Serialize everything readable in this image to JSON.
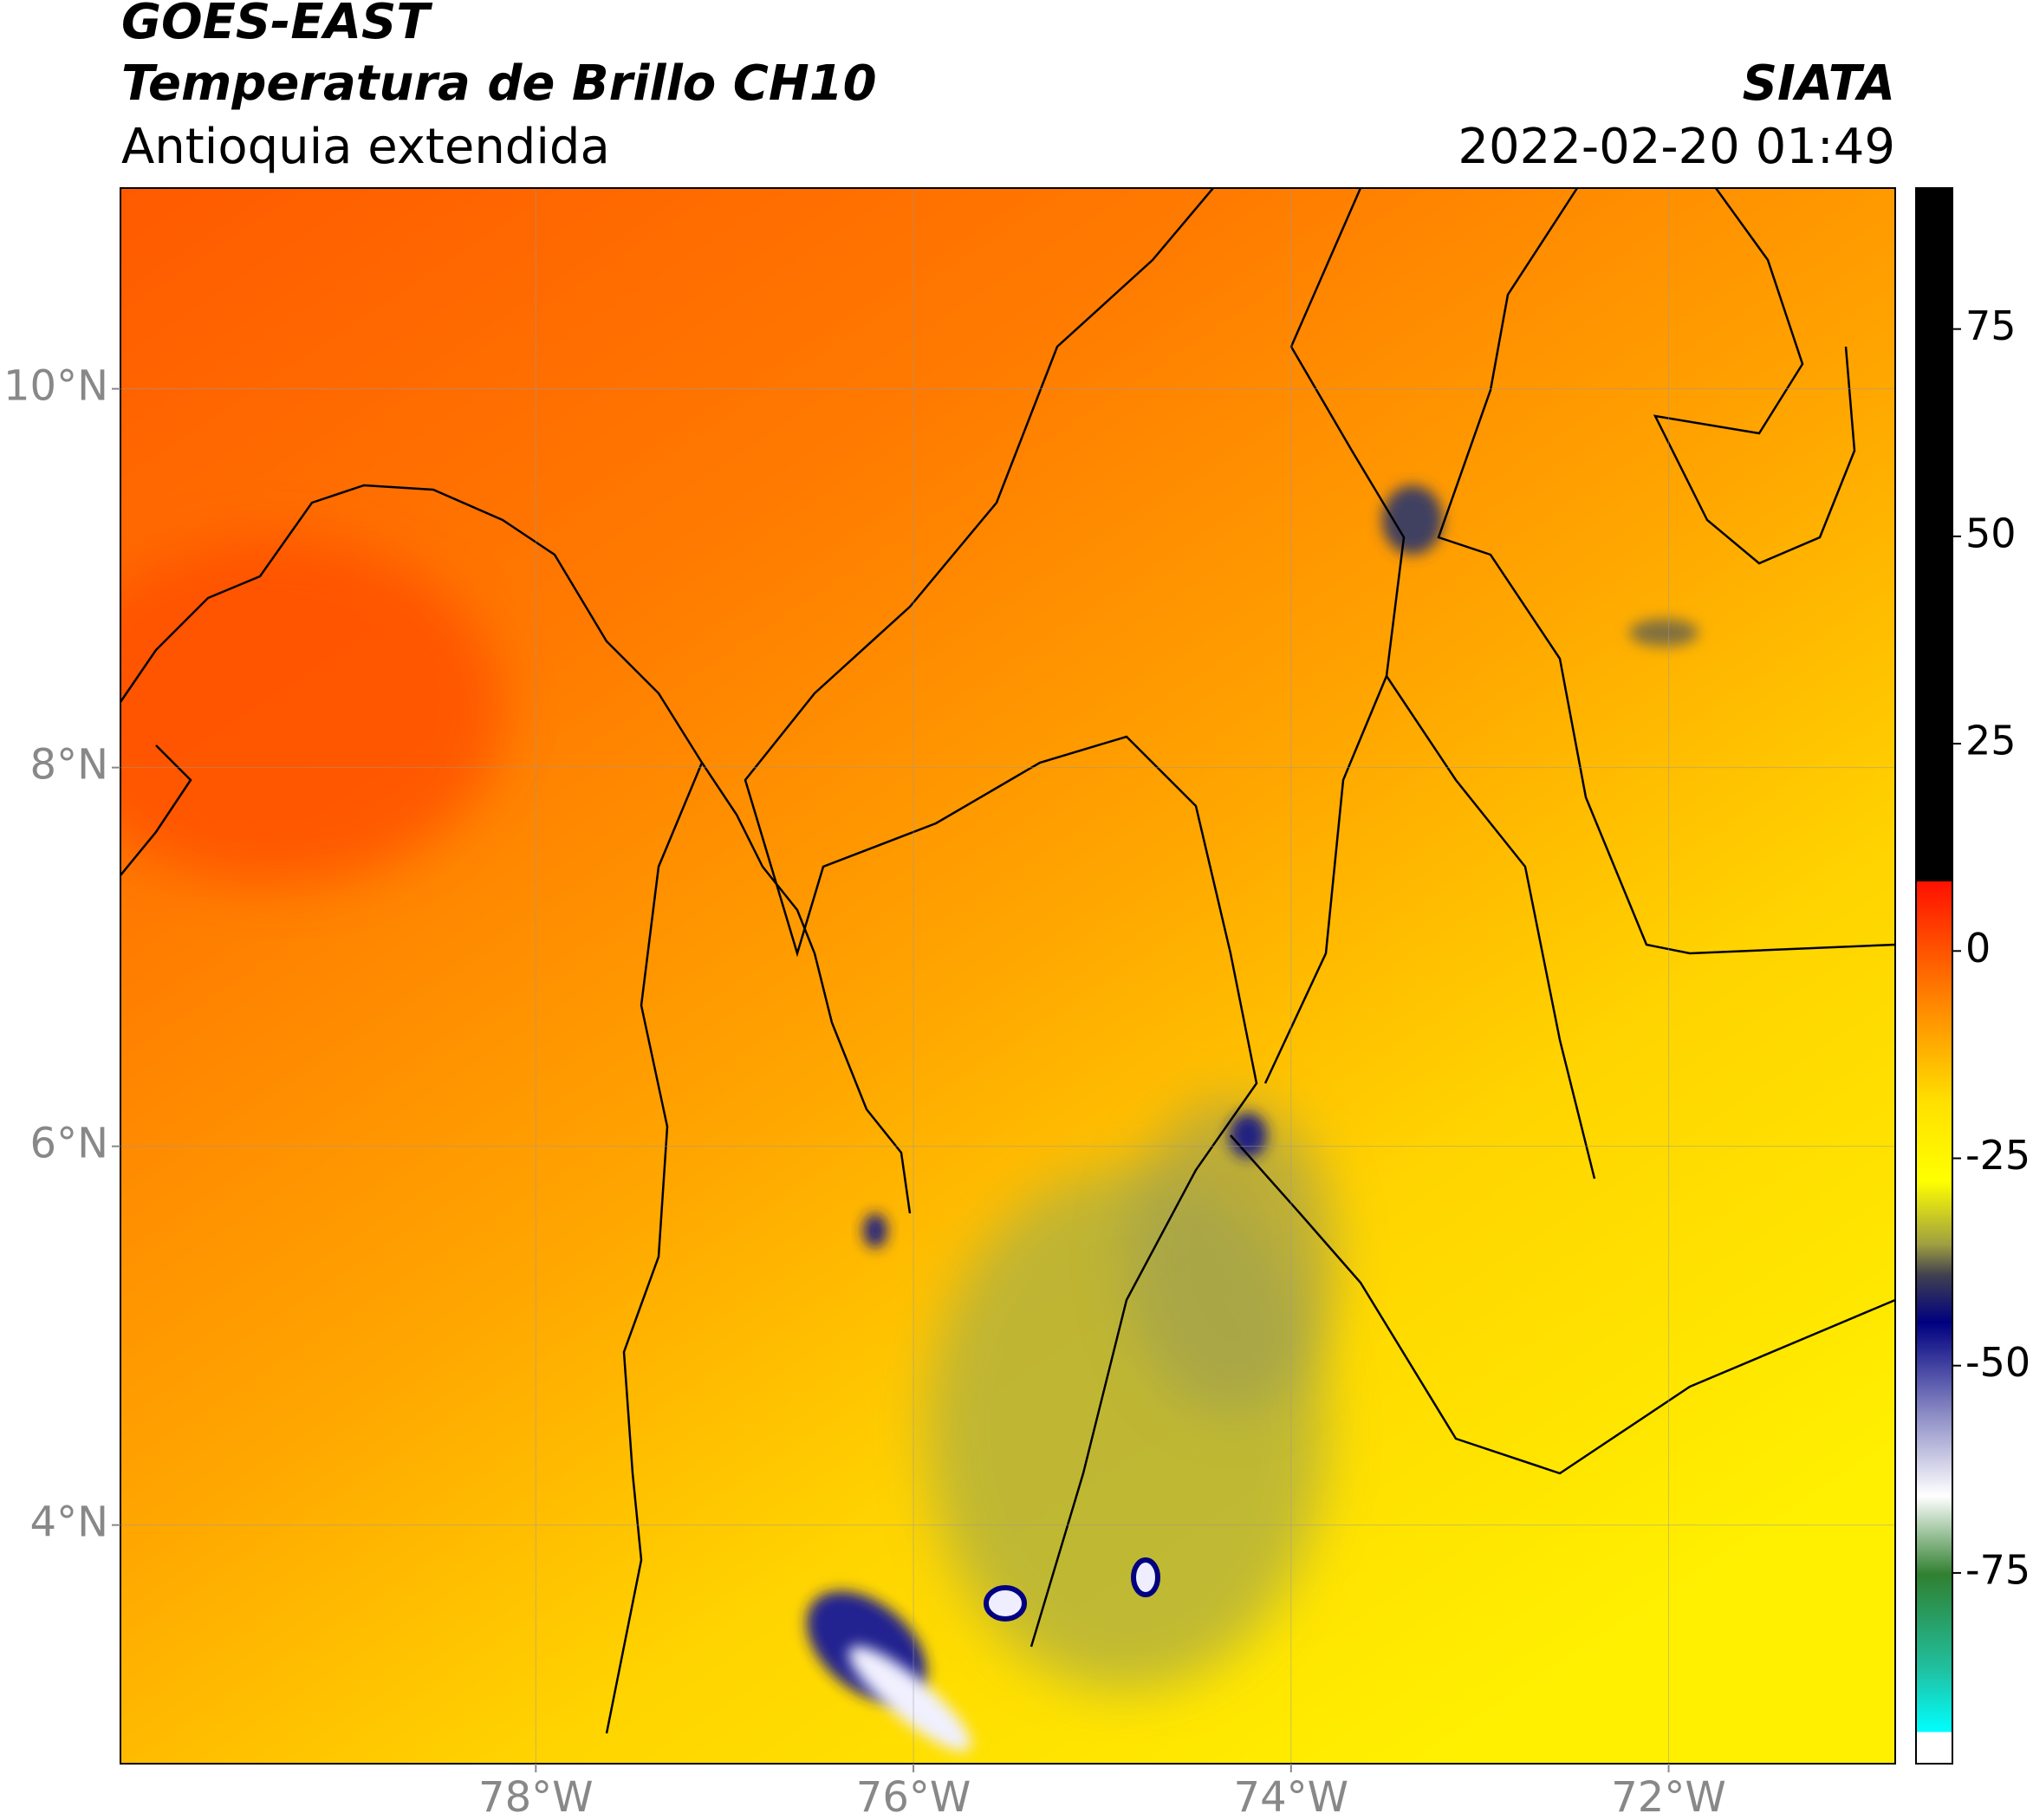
{
  "header": {
    "title": "GOES-EAST",
    "subtitle": "Temperatura de Brillo CH10",
    "region": "Antioquia extendida",
    "source": "SIATA",
    "datetime": "2022-02-20 01:49"
  },
  "map": {
    "xlim": [
      -80.2,
      -70.8
    ],
    "ylim": [
      2.74,
      11.06
    ],
    "xticks": [
      {
        "value": -78,
        "label": "78°W"
      },
      {
        "value": -76,
        "label": "76°W"
      },
      {
        "value": -74,
        "label": "74°W"
      },
      {
        "value": -72,
        "label": "72°W"
      }
    ],
    "yticks": [
      {
        "value": 4,
        "label": "4°N"
      },
      {
        "value": 6,
        "label": "6°N"
      },
      {
        "value": 8,
        "label": "8°N"
      },
      {
        "value": 10,
        "label": "10°N"
      }
    ],
    "grid": true
  },
  "colorbar": {
    "lim": [
      -98,
      92
    ],
    "ticks": [
      75,
      50,
      25,
      0,
      -25,
      -50,
      -75
    ]
  }
}
